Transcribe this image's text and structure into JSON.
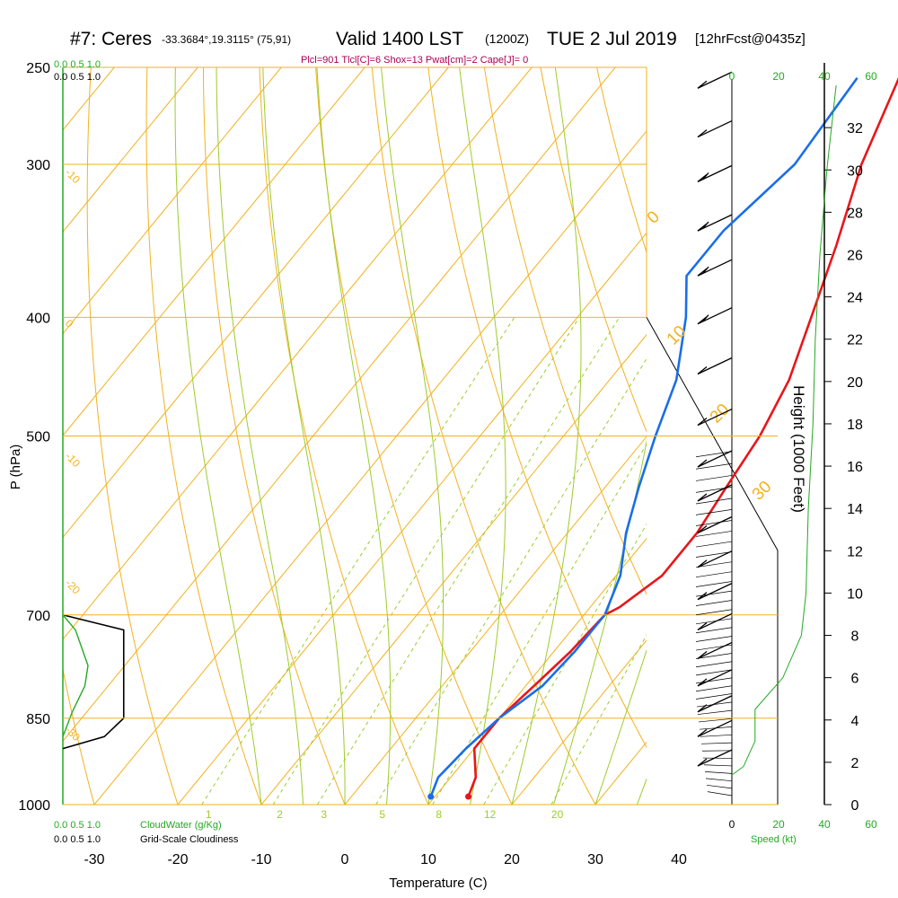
{
  "header": {
    "station": "#7: Ceres",
    "coords": "-33.3684°,19.3115° (75,91)",
    "valid": "Valid 1400 LST",
    "zulu": "(1200Z)",
    "date": "TUE 2 Jul 2019",
    "forecast": "[12hrFcst@0435z]",
    "indices": "Plcl=901 Tlcl[C]=6 Shox=13 Pwat[cm]=2 Cape[J]= 0"
  },
  "labels": {
    "cloud_scale_top": "0.0   0.5   1.0",
    "cloud_scale_top_black": "0.0   0.5   1.0",
    "cloudwater": "CloudWater (g/Kg)",
    "cloudiness": "Grid-Scale Cloudiness",
    "cw_scale_bottom": "0.0   0.5   1.0",
    "gs_scale_bottom": "0.0   0.5   1.0",
    "speed": "Speed (kt)"
  },
  "colors": {
    "temperature": "#e8161a",
    "dewpoint": "#1a6ee8",
    "isotherm": "#f2b21e",
    "dry_adiabat": "#f2b21e",
    "moist_adiabat": "#9ccc2a",
    "mixing_ratio": "#9ccc2a",
    "cloud": "#22aa22",
    "wind_speed": "#22aa22",
    "barb": "#000000",
    "header_indices": "#aa0055"
  },
  "chart_data": {
    "type": "line",
    "subtype": "skew-T log-P sounding",
    "xlabel": "Temperature (C)",
    "ylabel": "P (hPa)",
    "y2label": "Height (1000 Feet)",
    "x_ticks": [
      -30,
      -20,
      -10,
      0,
      10,
      20,
      30,
      40
    ],
    "y_ticks": [
      250,
      300,
      400,
      500,
      700,
      850,
      1000
    ],
    "height_ticks": [
      0,
      2,
      4,
      6,
      8,
      10,
      12,
      14,
      16,
      18,
      20,
      22,
      24,
      26,
      28,
      30,
      32
    ],
    "speed_ticks_top": [
      "0",
      "20",
      "40",
      "60"
    ],
    "speed_ticks_bottom": [
      "0",
      "20",
      "40",
      "60"
    ],
    "cloud_ticks": [
      "0.0",
      "0.5",
      "1.0"
    ],
    "isotherm_labels": [
      {
        "t": -30,
        "p": 305,
        "text": "-10"
      },
      {
        "t": -10,
        "p": 405,
        "text": "0"
      },
      {
        "t": 10,
        "p": 520,
        "text": "-10"
      },
      {
        "t": 30,
        "p": 660,
        "text": "-20"
      },
      {
        "t": 50,
        "p": 870,
        "text": "-30"
      }
    ],
    "iso_label_top": [
      {
        "text": "0"
      },
      {
        "text": "10"
      },
      {
        "text": "20"
      },
      {
        "text": "30"
      }
    ],
    "mixing_ratio_labels": [
      "1",
      "2",
      "3",
      "5",
      "8",
      "12",
      "20"
    ],
    "series": [
      {
        "name": "Temperature",
        "points": [
          {
            "p": 255,
            "t": -5
          },
          {
            "p": 300,
            "t": -1
          },
          {
            "p": 350,
            "t": 4
          },
          {
            "p": 400,
            "t": 8
          },
          {
            "p": 450,
            "t": 11.5
          },
          {
            "p": 500,
            "t": 13.5
          },
          {
            "p": 550,
            "t": 14.5
          },
          {
            "p": 600,
            "t": 15.5
          },
          {
            "p": 650,
            "t": 15.5
          },
          {
            "p": 690,
            "t": 13.5
          },
          {
            "p": 700,
            "t": 12.5
          },
          {
            "p": 750,
            "t": 12
          },
          {
            "p": 800,
            "t": 11
          },
          {
            "p": 850,
            "t": 10
          },
          {
            "p": 900,
            "t": 10
          },
          {
            "p": 950,
            "t": 13
          },
          {
            "p": 985,
            "t": 14
          }
        ]
      },
      {
        "name": "Dewpoint",
        "points": [
          {
            "p": 255,
            "t": -10
          },
          {
            "p": 300,
            "t": -9
          },
          {
            "p": 340,
            "t": -11
          },
          {
            "p": 370,
            "t": -11
          },
          {
            "p": 400,
            "t": -7
          },
          {
            "p": 450,
            "t": -2
          },
          {
            "p": 500,
            "t": 1
          },
          {
            "p": 550,
            "t": 4
          },
          {
            "p": 600,
            "t": 7
          },
          {
            "p": 650,
            "t": 10.5
          },
          {
            "p": 700,
            "t": 12.5
          },
          {
            "p": 750,
            "t": 12.5
          },
          {
            "p": 800,
            "t": 12
          },
          {
            "p": 850,
            "t": 10
          },
          {
            "p": 900,
            "t": 9
          },
          {
            "p": 950,
            "t": 8.5
          },
          {
            "p": 985,
            "t": 9.5
          }
        ]
      }
    ],
    "cloudiness": [
      {
        "p": 700,
        "v": 0.0
      },
      {
        "p": 720,
        "v": 0.88
      },
      {
        "p": 850,
        "v": 0.88
      },
      {
        "p": 880,
        "v": 0.6
      },
      {
        "p": 900,
        "v": 0.0
      }
    ],
    "cloudwater": [
      {
        "p": 700,
        "v": 0.0
      },
      {
        "p": 720,
        "v": 0.2
      },
      {
        "p": 770,
        "v": 0.4
      },
      {
        "p": 800,
        "v": 0.35
      },
      {
        "p": 840,
        "v": 0.15
      },
      {
        "p": 880,
        "v": 0.0
      }
    ],
    "wind_speed_profile": [
      {
        "h": 1.4,
        "s": -10
      },
      {
        "h": 1.8,
        "s": -5
      },
      {
        "h": 3.0,
        "s": 0
      },
      {
        "h": 4.5,
        "s": 0
      },
      {
        "h": 6,
        "s": 12
      },
      {
        "h": 8,
        "s": 20
      },
      {
        "h": 10,
        "s": 22
      },
      {
        "h": 14,
        "s": 23
      },
      {
        "h": 18,
        "s": 25
      },
      {
        "h": 22,
        "s": 26
      },
      {
        "h": 26,
        "s": 28
      },
      {
        "h": 30,
        "s": 31
      },
      {
        "h": 34,
        "s": 35
      }
    ],
    "wind_barbs": [
      {
        "p": 260,
        "kt": 10
      },
      {
        "p": 285,
        "kt": 10
      },
      {
        "p": 310,
        "kt": 15
      },
      {
        "p": 340,
        "kt": 15
      },
      {
        "p": 370,
        "kt": 15
      },
      {
        "p": 405,
        "kt": 15
      },
      {
        "p": 445,
        "kt": 10
      },
      {
        "p": 490,
        "kt": 10
      },
      {
        "p": 530,
        "kt": 10
      },
      {
        "p": 565,
        "kt": 10
      },
      {
        "p": 600,
        "kt": 10
      },
      {
        "p": 640,
        "kt": 10
      },
      {
        "p": 680,
        "kt": 10
      },
      {
        "p": 720,
        "kt": 10
      },
      {
        "p": 760,
        "kt": 10
      },
      {
        "p": 800,
        "kt": 10
      },
      {
        "p": 840,
        "kt": 5
      },
      {
        "p": 880,
        "kt": 5
      },
      {
        "p": 930,
        "kt": 5
      }
    ]
  }
}
